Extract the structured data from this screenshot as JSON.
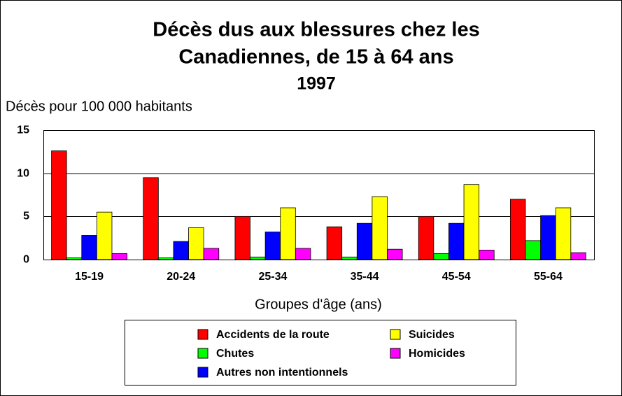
{
  "chart_data": {
    "type": "bar",
    "title": [
      "Décès dus aux blessures chez les",
      "Canadiennes, de 15 à 64 ans"
    ],
    "subtitle": "1997",
    "y_label": "Décès pour 100 000 habitants",
    "x_label": "Groupes d'âge (ans)",
    "categories": [
      "15-19",
      "20-24",
      "25-34",
      "35-44",
      "45-54",
      "55-64"
    ],
    "series": [
      {
        "name": "Accidents de la route",
        "color": "#ff0000",
        "values": [
          12.6,
          9.5,
          5.0,
          3.8,
          5.0,
          7.0
        ]
      },
      {
        "name": "Chutes",
        "color": "#00ff00",
        "values": [
          0.2,
          0.2,
          0.3,
          0.3,
          0.7,
          2.2
        ]
      },
      {
        "name": "Autres non intentionnels",
        "color": "#0000ff",
        "values": [
          2.8,
          2.1,
          3.2,
          4.2,
          4.2,
          5.1
        ]
      },
      {
        "name": "Suicides",
        "color": "#ffff00",
        "values": [
          5.5,
          3.7,
          6.0,
          7.3,
          8.7,
          6.0
        ]
      },
      {
        "name": "Homicides",
        "color": "#ff00ff",
        "values": [
          0.7,
          1.3,
          1.3,
          1.2,
          1.1,
          0.8
        ]
      }
    ],
    "ylim": [
      0,
      15
    ],
    "yticks": [
      0,
      5,
      10,
      15
    ],
    "grid": true
  }
}
